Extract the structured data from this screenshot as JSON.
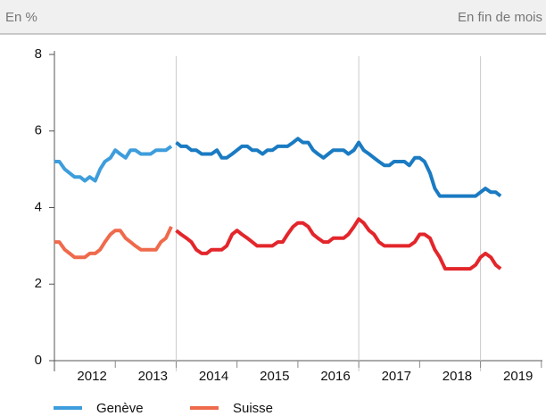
{
  "chart_data": {
    "type": "line",
    "header_left": "En %",
    "header_right": "En fin de mois",
    "x": [
      2012.0,
      2012.08,
      2012.17,
      2012.25,
      2012.33,
      2012.42,
      2012.5,
      2012.58,
      2012.67,
      2012.75,
      2012.83,
      2012.92,
      2013.0,
      2013.08,
      2013.17,
      2013.25,
      2013.33,
      2013.42,
      2013.5,
      2013.58,
      2013.67,
      2013.75,
      2013.83,
      2013.92,
      2014.0,
      2014.08,
      2014.17,
      2014.25,
      2014.33,
      2014.42,
      2014.5,
      2014.58,
      2014.67,
      2014.75,
      2014.83,
      2014.92,
      2015.0,
      2015.08,
      2015.17,
      2015.25,
      2015.33,
      2015.42,
      2015.5,
      2015.58,
      2015.67,
      2015.75,
      2015.83,
      2015.92,
      2016.0,
      2016.08,
      2016.17,
      2016.25,
      2016.33,
      2016.42,
      2016.5,
      2016.58,
      2016.67,
      2016.75,
      2016.83,
      2016.92,
      2017.0,
      2017.08,
      2017.17,
      2017.25,
      2017.33,
      2017.42,
      2017.5,
      2017.58,
      2017.67,
      2017.75,
      2017.83,
      2017.92,
      2018.0,
      2018.08,
      2018.17,
      2018.25,
      2018.33,
      2018.42,
      2018.5,
      2018.58,
      2018.67,
      2018.75,
      2018.83,
      2018.92,
      2019.0,
      2019.08,
      2019.17,
      2019.25,
      2019.33
    ],
    "series": [
      {
        "name": "Genève",
        "color": "#3e9ddc",
        "values": [
          5.2,
          5.2,
          5.0,
          4.9,
          4.8,
          4.8,
          4.7,
          4.8,
          4.7,
          5.0,
          5.2,
          5.3,
          5.5,
          5.4,
          5.3,
          5.5,
          5.5,
          5.4,
          5.4,
          5.4,
          5.5,
          5.5,
          5.5,
          5.6,
          null,
          null,
          null,
          null,
          null,
          null,
          null,
          null,
          null,
          null,
          null,
          null,
          null,
          null,
          null,
          null,
          null,
          null,
          null,
          null,
          null,
          null,
          null,
          null,
          null,
          null,
          null,
          null,
          null,
          null,
          null,
          null,
          null,
          null,
          null,
          null,
          null,
          null,
          null,
          null,
          null,
          null,
          null,
          null,
          null,
          null,
          null,
          null,
          null,
          null,
          null,
          null,
          null,
          null,
          null,
          null,
          null,
          null,
          null,
          null,
          null,
          null,
          null,
          null,
          null
        ]
      },
      {
        "color": "#1a7bc2",
        "values": [
          null,
          null,
          null,
          null,
          null,
          null,
          null,
          null,
          null,
          null,
          null,
          null,
          null,
          null,
          null,
          null,
          null,
          null,
          null,
          null,
          null,
          null,
          null,
          null,
          5.7,
          5.6,
          5.6,
          5.5,
          5.5,
          5.4,
          5.4,
          5.4,
          5.5,
          5.3,
          5.3,
          5.4,
          5.5,
          5.6,
          5.6,
          5.5,
          5.5,
          5.4,
          5.5,
          5.5,
          5.6,
          5.6,
          5.6,
          5.7,
          5.8,
          5.7,
          5.7,
          5.5,
          5.4,
          5.3,
          5.4,
          5.5,
          5.5,
          5.5,
          5.4,
          5.5,
          5.7,
          5.5,
          5.4,
          5.3,
          5.2,
          5.1,
          5.1,
          5.2,
          5.2,
          5.2,
          5.1,
          5.3,
          5.3,
          5.2,
          4.9,
          4.5,
          4.3,
          4.3,
          4.3,
          4.3,
          4.3,
          4.3,
          4.3,
          4.3,
          4.4,
          4.5,
          4.4,
          4.4,
          4.3
        ]
      },
      {
        "name": "Suisse",
        "color": "#ef6a4c",
        "values": [
          3.1,
          3.1,
          2.9,
          2.8,
          2.7,
          2.7,
          2.7,
          2.8,
          2.8,
          2.9,
          3.1,
          3.3,
          3.4,
          3.4,
          3.2,
          3.1,
          3.0,
          2.9,
          2.9,
          2.9,
          2.9,
          3.1,
          3.2,
          3.5,
          null,
          null,
          null,
          null,
          null,
          null,
          null,
          null,
          null,
          null,
          null,
          null,
          null,
          null,
          null,
          null,
          null,
          null,
          null,
          null,
          null,
          null,
          null,
          null,
          null,
          null,
          null,
          null,
          null,
          null,
          null,
          null,
          null,
          null,
          null,
          null,
          null,
          null,
          null,
          null,
          null,
          null,
          null,
          null,
          null,
          null,
          null,
          null,
          null,
          null,
          null,
          null,
          null,
          null,
          null,
          null,
          null,
          null,
          null,
          null,
          null,
          null,
          null,
          null,
          null
        ]
      },
      {
        "color": "#e3262b",
        "values": [
          null,
          null,
          null,
          null,
          null,
          null,
          null,
          null,
          null,
          null,
          null,
          null,
          null,
          null,
          null,
          null,
          null,
          null,
          null,
          null,
          null,
          null,
          null,
          null,
          3.4,
          3.3,
          3.2,
          3.1,
          2.9,
          2.8,
          2.8,
          2.9,
          2.9,
          2.9,
          3.0,
          3.3,
          3.4,
          3.3,
          3.2,
          3.1,
          3.0,
          3.0,
          3.0,
          3.0,
          3.1,
          3.1,
          3.3,
          3.5,
          3.6,
          3.6,
          3.5,
          3.3,
          3.2,
          3.1,
          3.1,
          3.2,
          3.2,
          3.2,
          3.3,
          3.5,
          3.7,
          3.6,
          3.4,
          3.3,
          3.1,
          3.0,
          3.0,
          3.0,
          3.0,
          3.0,
          3.0,
          3.1,
          3.3,
          3.3,
          3.2,
          2.9,
          2.7,
          2.4,
          2.4,
          2.4,
          2.4,
          2.4,
          2.4,
          2.5,
          2.7,
          2.8,
          2.7,
          2.5,
          2.4
        ]
      }
    ],
    "xlim": [
      2012,
      2019.9
    ],
    "xticks": [
      {
        "value": 2012.5,
        "label": "2012"
      },
      {
        "value": 2013.5,
        "label": "2013"
      },
      {
        "value": 2014.5,
        "label": "2014"
      },
      {
        "value": 2015.5,
        "label": "2015"
      },
      {
        "value": 2016.5,
        "label": "2016"
      },
      {
        "value": 2017.5,
        "label": "2017"
      },
      {
        "value": 2018.5,
        "label": "2018"
      },
      {
        "value": 2019.5,
        "label": "2019"
      }
    ],
    "vlines": [
      2014,
      2017,
      2019
    ],
    "ylim": [
      0,
      8
    ],
    "yticks": [
      0,
      2,
      4,
      6,
      8
    ]
  }
}
